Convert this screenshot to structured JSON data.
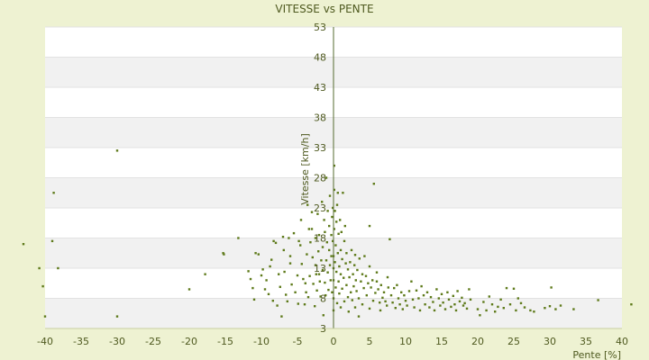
{
  "chart_data": {
    "type": "scatter",
    "title": "VITESSE vs PENTE",
    "xlabel": "Pente [%]",
    "ylabel": "Vitesse [km/h]",
    "xlim": [
      -40,
      40
    ],
    "ylim": [
      3,
      53
    ],
    "x_ticks": [
      -40,
      -35,
      -30,
      -25,
      -20,
      -15,
      -10,
      -5,
      0,
      5,
      10,
      15,
      20,
      25,
      30,
      35,
      40
    ],
    "y_ticks": [
      3,
      8,
      13,
      18,
      23,
      28,
      33,
      38,
      43,
      48,
      53
    ],
    "grid": "horizontal-bands",
    "legend": "none",
    "colors": {
      "background": "#eef2d2",
      "band": "#f1f1f1",
      "plot": "#ffffff",
      "marker": "#5e7a1a",
      "axis": "#556b2f",
      "text": "#4f5a20"
    },
    "points": [
      [
        -43,
        17
      ],
      [
        -40.8,
        13
      ],
      [
        -40.3,
        10
      ],
      [
        -40,
        5
      ],
      [
        -39,
        17.5
      ],
      [
        -38.8,
        25.5
      ],
      [
        -38.2,
        13
      ],
      [
        -30,
        32.5
      ],
      [
        -30,
        5
      ],
      [
        -20,
        9.5
      ],
      [
        -17.8,
        12
      ],
      [
        -15.3,
        15.5
      ],
      [
        -15.2,
        15.3
      ],
      [
        -13.2,
        18
      ],
      [
        -11.8,
        12.5
      ],
      [
        -11.5,
        11.2
      ],
      [
        -11.2,
        9.7
      ],
      [
        -11,
        7.8
      ],
      [
        -10.8,
        15.5
      ],
      [
        -10.4,
        15.3
      ],
      [
        -10,
        11.8
      ],
      [
        -9.8,
        12.8
      ],
      [
        -9.5,
        9.5
      ],
      [
        -9.3,
        11
      ],
      [
        -9,
        8.7
      ],
      [
        -8.8,
        13.3
      ],
      [
        -8.6,
        14.4
      ],
      [
        -8.4,
        7.6
      ],
      [
        -8.3,
        17.5
      ],
      [
        -8,
        17.2
      ],
      [
        -7.8,
        6.8
      ],
      [
        -7.6,
        12
      ],
      [
        -7.4,
        9.9
      ],
      [
        -7.2,
        5
      ],
      [
        -7,
        18.2
      ],
      [
        -6.9,
        16
      ],
      [
        -6.8,
        12.4
      ],
      [
        -6.6,
        8.6
      ],
      [
        -6.4,
        7.5
      ],
      [
        -6.2,
        18
      ],
      [
        -6,
        15
      ],
      [
        -6,
        13.8
      ],
      [
        -5.8,
        10.3
      ],
      [
        -5.5,
        18.8
      ],
      [
        -5.3,
        9
      ],
      [
        -5,
        11.8
      ],
      [
        -4.9,
        7.1
      ],
      [
        -4.8,
        17.5
      ],
      [
        -4.6,
        16.8
      ],
      [
        -4.5,
        21
      ],
      [
        -4.4,
        13.7
      ],
      [
        -4.2,
        11.2
      ],
      [
        -4,
        7
      ],
      [
        -3.9,
        10.5
      ],
      [
        -3.8,
        9
      ],
      [
        -3.7,
        15.3
      ],
      [
        -3.6,
        23.5
      ],
      [
        -3.5,
        8.2
      ],
      [
        -3.4,
        19.5
      ],
      [
        -3.3,
        11.7
      ],
      [
        -3.2,
        17.3
      ],
      [
        -3,
        22.3
      ],
      [
        -3,
        19.5
      ],
      [
        -2.9,
        14.8
      ],
      [
        -2.8,
        10.4
      ],
      [
        -2.6,
        6.7
      ],
      [
        -2.5,
        18
      ],
      [
        -2.5,
        13.5
      ],
      [
        -2.4,
        12
      ],
      [
        -2.3,
        9.3
      ],
      [
        -2.2,
        22
      ],
      [
        -2.1,
        15.8
      ],
      [
        -2,
        18.5
      ],
      [
        -2,
        12
      ],
      [
        -1.9,
        10.8
      ],
      [
        -1.8,
        8.3
      ],
      [
        -1.7,
        14.3
      ],
      [
        -1.6,
        24
      ],
      [
        -1.5,
        16.5
      ],
      [
        -1.5,
        12.7
      ],
      [
        -1.4,
        5.2
      ],
      [
        -1.3,
        21
      ],
      [
        -1.2,
        19
      ],
      [
        -1.2,
        10.6
      ],
      [
        -1.1,
        8.5
      ],
      [
        -1,
        28
      ],
      [
        -1,
        14.3
      ],
      [
        -0.9,
        17.3
      ],
      [
        -0.8,
        22.5
      ],
      [
        -0.8,
        12.3
      ],
      [
        -0.7,
        9.4
      ],
      [
        -0.6,
        20
      ],
      [
        -0.6,
        16
      ],
      [
        -0.5,
        25
      ],
      [
        -0.5,
        13.5
      ],
      [
        -0.4,
        11
      ],
      [
        -0.3,
        18.5
      ],
      [
        -0.3,
        15
      ],
      [
        -0.2,
        21.5
      ],
      [
        -0.2,
        9
      ],
      [
        -0.1,
        23
      ],
      [
        -0.1,
        17.5
      ],
      [
        0,
        15
      ],
      [
        0,
        13
      ],
      [
        0,
        11
      ],
      [
        0,
        8
      ],
      [
        0,
        6
      ],
      [
        0.1,
        30
      ],
      [
        0.1,
        26
      ],
      [
        0.1,
        19.5
      ],
      [
        0.2,
        22.5
      ],
      [
        0.2,
        14
      ],
      [
        0.3,
        16.8
      ],
      [
        0.3,
        9.8
      ],
      [
        0.4,
        20.7
      ],
      [
        0.4,
        12.4
      ],
      [
        0.5,
        23.5
      ],
      [
        0.5,
        7.2
      ],
      [
        0.6,
        25.5
      ],
      [
        0.6,
        15.5
      ],
      [
        0.7,
        18.7
      ],
      [
        0.7,
        10.8
      ],
      [
        0.8,
        13.3
      ],
      [
        0.8,
        8.8
      ],
      [
        0.9,
        21
      ],
      [
        1,
        16
      ],
      [
        1,
        12
      ],
      [
        1,
        6.5
      ],
      [
        1.1,
        19
      ],
      [
        1.2,
        14.5
      ],
      [
        1.2,
        9.6
      ],
      [
        1.3,
        25.5
      ],
      [
        1.4,
        11.4
      ],
      [
        1.5,
        17.5
      ],
      [
        1.5,
        7.5
      ],
      [
        1.6,
        20
      ],
      [
        1.7,
        13.8
      ],
      [
        1.8,
        15.5
      ],
      [
        1.8,
        10.2
      ],
      [
        2,
        12.8
      ],
      [
        2,
        8.2
      ],
      [
        2.1,
        5.8
      ],
      [
        2.2,
        11.5
      ],
      [
        2.3,
        14
      ],
      [
        2.4,
        9
      ],
      [
        2.5,
        16
      ],
      [
        2.6,
        7.7
      ],
      [
        2.7,
        12
      ],
      [
        2.8,
        10
      ],
      [
        2.9,
        13.5
      ],
      [
        3,
        15.2
      ],
      [
        3,
        6.5
      ],
      [
        3.1,
        11
      ],
      [
        3.2,
        9.2
      ],
      [
        3.3,
        12.7
      ],
      [
        3.5,
        8
      ],
      [
        3.5,
        5
      ],
      [
        3.6,
        14.6
      ],
      [
        3.8,
        10.8
      ],
      [
        4,
        12
      ],
      [
        4,
        7
      ],
      [
        4.2,
        9.7
      ],
      [
        4.3,
        15
      ],
      [
        4.5,
        11.7
      ],
      [
        4.6,
        8.5
      ],
      [
        4.8,
        10.5
      ],
      [
        5,
        20
      ],
      [
        5,
        13.3
      ],
      [
        5,
        6.3
      ],
      [
        5.2,
        9.8
      ],
      [
        5.4,
        11
      ],
      [
        5.5,
        7.6
      ],
      [
        5.6,
        27
      ],
      [
        5.8,
        8.9
      ],
      [
        6,
        10.8
      ],
      [
        6,
        12.3
      ],
      [
        6.2,
        9.5
      ],
      [
        6.4,
        7.3
      ],
      [
        6.5,
        6
      ],
      [
        6.6,
        10.2
      ],
      [
        6.8,
        8.1
      ],
      [
        7,
        9
      ],
      [
        7.2,
        7.5
      ],
      [
        7.4,
        6.8
      ],
      [
        7.5,
        11.5
      ],
      [
        7.6,
        9.8
      ],
      [
        7.8,
        17.8
      ],
      [
        8,
        8.5
      ],
      [
        8.2,
        7.3
      ],
      [
        8.4,
        9.7
      ],
      [
        8.6,
        6.4
      ],
      [
        8.8,
        10.2
      ],
      [
        9,
        8
      ],
      [
        9.2,
        7
      ],
      [
        9.4,
        9
      ],
      [
        9.6,
        6.2
      ],
      [
        9.8,
        8.5
      ],
      [
        10,
        7.6
      ],
      [
        10.2,
        6.8
      ],
      [
        10.5,
        9.2
      ],
      [
        10.8,
        10.8
      ],
      [
        11,
        7.8
      ],
      [
        11.2,
        6.5
      ],
      [
        11.5,
        9.3
      ],
      [
        11.8,
        8
      ],
      [
        12,
        6
      ],
      [
        12.2,
        10
      ],
      [
        12.5,
        8.5
      ],
      [
        12.7,
        7
      ],
      [
        13,
        9
      ],
      [
        13.3,
        6.5
      ],
      [
        13.5,
        8.2
      ],
      [
        13.8,
        7.4
      ],
      [
        14,
        6
      ],
      [
        14.3,
        9.5
      ],
      [
        14.6,
        8
      ],
      [
        14.8,
        6.8
      ],
      [
        15,
        8.7
      ],
      [
        15.2,
        7.3
      ],
      [
        15.5,
        6.2
      ],
      [
        15.8,
        9
      ],
      [
        16,
        7.8
      ],
      [
        16.3,
        6.6
      ],
      [
        16.6,
        8.4
      ],
      [
        16.8,
        7
      ],
      [
        17,
        6
      ],
      [
        17.2,
        9.2
      ],
      [
        17.5,
        7.5
      ],
      [
        17.8,
        8.1
      ],
      [
        18,
        6.8
      ],
      [
        18.2,
        7.2
      ],
      [
        18.5,
        6.3
      ],
      [
        18.8,
        9.5
      ],
      [
        19,
        7.8
      ],
      [
        20,
        6.2
      ],
      [
        20.3,
        5.2
      ],
      [
        20.8,
        7.4
      ],
      [
        21.2,
        6
      ],
      [
        21.6,
        8.3
      ],
      [
        22,
        7
      ],
      [
        22.4,
        5.8
      ],
      [
        22.8,
        6.6
      ],
      [
        23.2,
        7.8
      ],
      [
        23.6,
        6.4
      ],
      [
        24,
        9.7
      ],
      [
        24.5,
        7
      ],
      [
        25,
        9.6
      ],
      [
        25.3,
        6
      ],
      [
        25.6,
        8
      ],
      [
        26,
        7.2
      ],
      [
        26.5,
        6.5
      ],
      [
        27.3,
        6
      ],
      [
        27.8,
        5.8
      ],
      [
        29.3,
        6.4
      ],
      [
        30,
        6.7
      ],
      [
        30.2,
        9.8
      ],
      [
        30.8,
        6.2
      ],
      [
        31.5,
        6.8
      ],
      [
        33.3,
        6.2
      ],
      [
        36.7,
        7.7
      ],
      [
        41.3,
        7
      ]
    ]
  }
}
